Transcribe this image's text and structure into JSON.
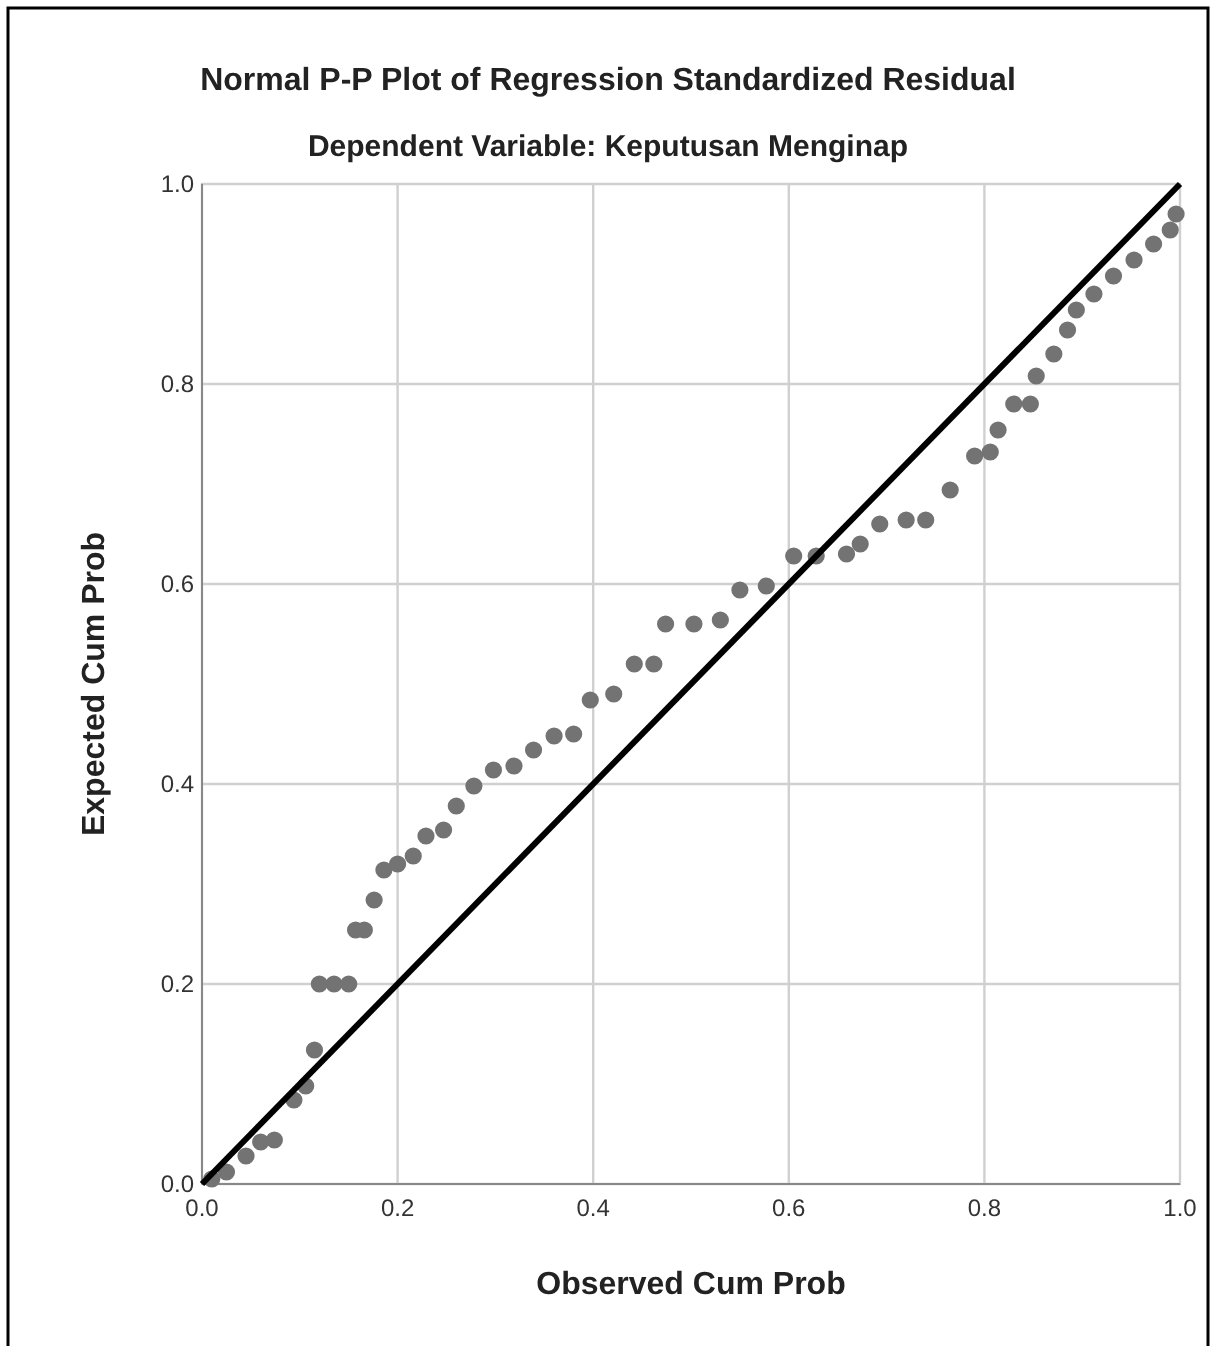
{
  "chart_data": {
    "type": "scatter",
    "title": "Normal P-P Plot of Regression Standardized Residual",
    "subtitle": "Dependent Variable: Keputusan Menginap",
    "xlabel": "Observed Cum Prob",
    "ylabel": "Expected Cum Prob",
    "xlim": [
      0,
      1
    ],
    "ylim": [
      0,
      1
    ],
    "xticks": [
      {
        "value": 0,
        "label": "0.0"
      },
      {
        "value": 0.2,
        "label": "0.2"
      },
      {
        "value": 0.4,
        "label": "0.4"
      },
      {
        "value": 0.6,
        "label": "0.6"
      },
      {
        "value": 0.8,
        "label": "0.8"
      },
      {
        "value": 1,
        "label": "1.0"
      }
    ],
    "yticks": [
      {
        "value": 0,
        "label": "0.0"
      },
      {
        "value": 0.2,
        "label": "0.2"
      },
      {
        "value": 0.4,
        "label": "0.4"
      },
      {
        "value": 0.6,
        "label": "0.6"
      },
      {
        "value": 0.8,
        "label": "0.8"
      },
      {
        "value": 1,
        "label": "1.0"
      }
    ],
    "grid": true,
    "marker": "circle",
    "series": [
      {
        "color": "#737373",
        "x": [
          0.01,
          0.025,
          0.045,
          0.06,
          0.074,
          0.094,
          0.106,
          0.115,
          0.12,
          0.135,
          0.15,
          0.157,
          0.166,
          0.176,
          0.186,
          0.2,
          0.216,
          0.229,
          0.247,
          0.26,
          0.278,
          0.298,
          0.319,
          0.339,
          0.36,
          0.38,
          0.397,
          0.421,
          0.442,
          0.462,
          0.474,
          0.503,
          0.53,
          0.55,
          0.577,
          0.605,
          0.628,
          0.659,
          0.673,
          0.693,
          0.72,
          0.74,
          0.765,
          0.79,
          0.806,
          0.814,
          0.83,
          0.847,
          0.853,
          0.871,
          0.885,
          0.894,
          0.912,
          0.932,
          0.953,
          0.973,
          0.99,
          0.996
        ],
        "values": [
          0.005,
          0.012,
          0.028,
          0.042,
          0.044,
          0.084,
          0.098,
          0.134,
          0.2,
          0.2,
          0.2,
          0.254,
          0.254,
          0.284,
          0.314,
          0.32,
          0.328,
          0.348,
          0.354,
          0.378,
          0.398,
          0.414,
          0.418,
          0.434,
          0.448,
          0.45,
          0.484,
          0.49,
          0.52,
          0.52,
          0.56,
          0.56,
          0.564,
          0.594,
          0.598,
          0.628,
          0.628,
          0.63,
          0.64,
          0.66,
          0.664,
          0.664,
          0.694,
          0.728,
          0.732,
          0.754,
          0.78,
          0.78,
          0.808,
          0.83,
          0.854,
          0.874,
          0.89,
          0.908,
          0.924,
          0.94,
          0.954,
          0.97
        ]
      },
      {
        "type": "line",
        "color": "#000000",
        "x": [
          0,
          1
        ],
        "values": [
          0,
          1
        ],
        "marker": "none"
      }
    ]
  }
}
